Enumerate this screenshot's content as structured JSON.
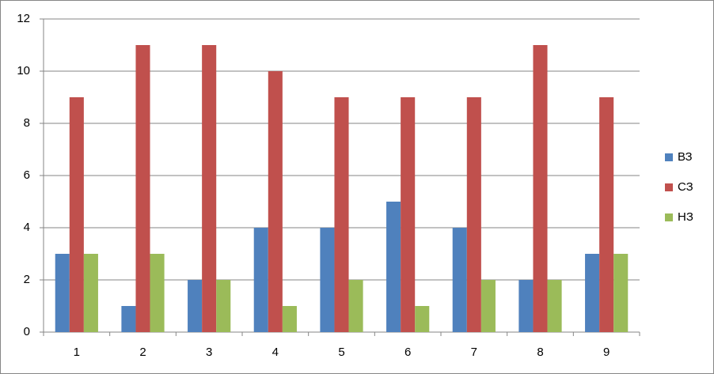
{
  "chart_data": {
    "type": "bar",
    "categories": [
      "1",
      "2",
      "3",
      "4",
      "5",
      "6",
      "7",
      "8",
      "9"
    ],
    "series": [
      {
        "name": "ВЗ",
        "color": "#4f81bd",
        "values": [
          3,
          1,
          2,
          4,
          4,
          5,
          4,
          2,
          3
        ]
      },
      {
        "name": "СЗ",
        "color": "#c0504d",
        "values": [
          9,
          11,
          11,
          10,
          9,
          9,
          9,
          11,
          9
        ]
      },
      {
        "name": "НЗ",
        "color": "#9bbb59",
        "values": [
          3,
          3,
          2,
          1,
          2,
          1,
          2,
          2,
          3
        ]
      }
    ],
    "ylim": [
      0,
      12
    ],
    "yticks": [
      0,
      2,
      4,
      6,
      8,
      10,
      12
    ],
    "grid": true,
    "legend": "right"
  }
}
